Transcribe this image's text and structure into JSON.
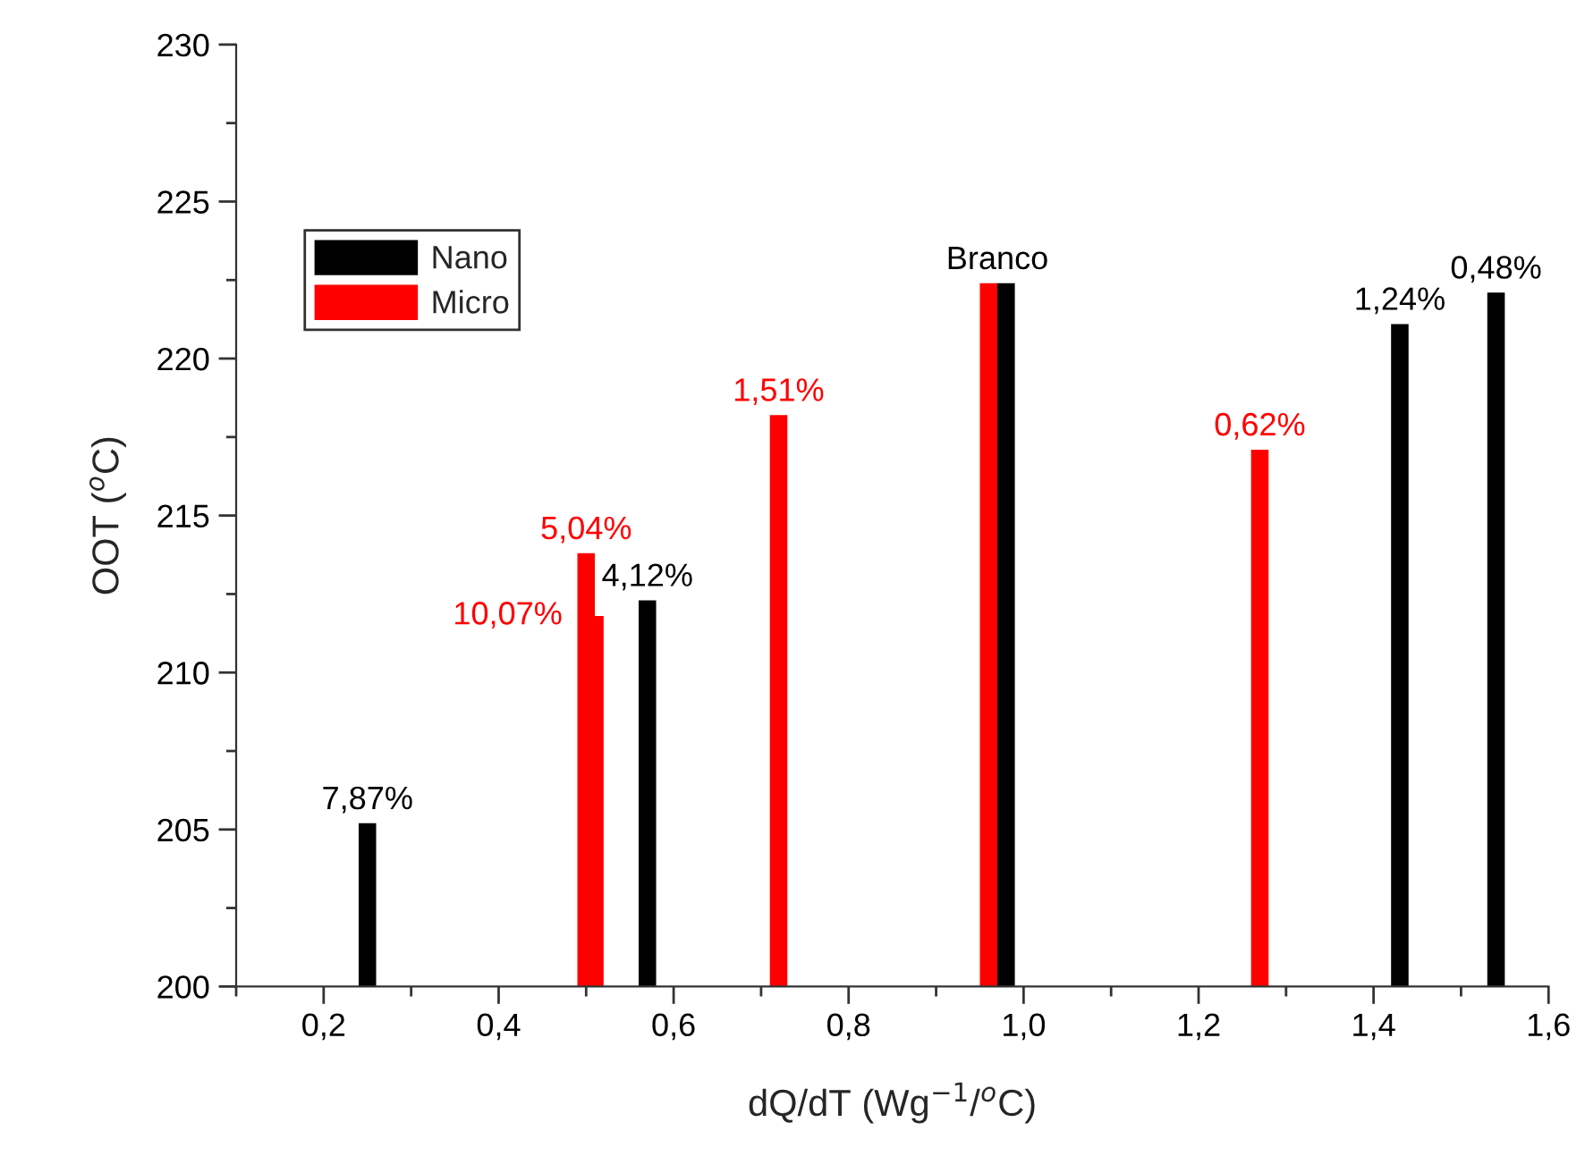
{
  "chart_data": {
    "type": "bar",
    "xlabel": "dQ/dT (Wg$^{−1}$/$^{o}$C)",
    "ylabel": "OOT ($^{o}$C)",
    "series": [
      {
        "name": "Nano",
        "color": "#000000",
        "x": [
          0.25,
          0.57,
          0.98,
          1.43,
          1.54
        ],
        "values": [
          205.2,
          212.3,
          222.4,
          221.1,
          222.1
        ]
      },
      {
        "name": "Micro",
        "color": "#ff0000",
        "x": [
          0.5,
          0.51,
          0.72,
          0.96,
          1.27
        ],
        "values": [
          213.8,
          211.8,
          218.2,
          222.4,
          217.1
        ]
      }
    ],
    "annotations": [
      {
        "text": "7,87%",
        "x": 0.25,
        "y": 205.2
      },
      {
        "text": "4,12%",
        "x": 0.57,
        "y": 212.3
      },
      {
        "text": "Branco",
        "x": 0.98,
        "y": 222.4
      },
      {
        "text": "1,24%",
        "x": 1.43,
        "y": 221.1
      },
      {
        "text": "0,48%",
        "x": 1.54,
        "y": 222.1
      },
      {
        "text": "5,04%",
        "x": 0.5,
        "y": 213.8
      },
      {
        "text": "10,07%",
        "x": 0.51,
        "y": 211.8
      },
      {
        "text": "1,51%",
        "x": 0.72,
        "y": 218.2
      },
      {
        "text": "0,62%",
        "x": 1.27,
        "y": 217.1
      }
    ],
    "xlim": [
      0.1,
      1.6
    ],
    "xticks": [
      {
        "value": 0.2,
        "label": "0,2"
      },
      {
        "value": 0.4,
        "label": "0,4"
      },
      {
        "value": 0.6,
        "label": "0,6"
      },
      {
        "value": 0.8,
        "label": "0,8"
      },
      {
        "value": 1.0,
        "label": "1,0"
      },
      {
        "value": 1.2,
        "label": "1,2"
      },
      {
        "value": 1.4,
        "label": "1,4"
      },
      {
        "value": 1.6,
        "label": "1,6"
      }
    ],
    "ylim": [
      200,
      230
    ],
    "yticks": [
      200,
      205,
      210,
      215,
      220,
      225,
      230
    ],
    "grid": false,
    "legend": "top left"
  }
}
